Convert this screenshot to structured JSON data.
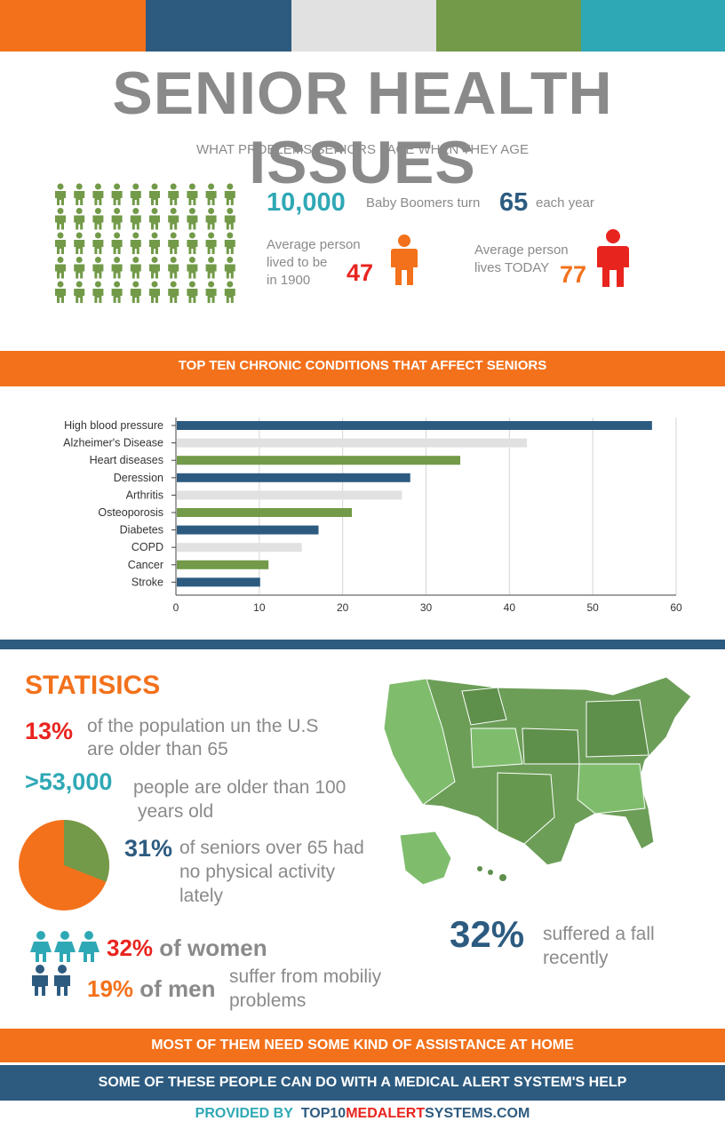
{
  "colors": {
    "orange": "#f3711b",
    "navy": "#2d5b80",
    "light_gray": "#e1e1e1",
    "green": "#729a48",
    "teal": "#2fa8b5",
    "red": "#e8241f",
    "text_gray": "#8a8a8a"
  },
  "header": {
    "title": "SENIOR HEALTH ISSUES",
    "subtitle": "WHAT PROBLEMS SENIORS FACE WHEN THEY AGE"
  },
  "intro": {
    "boomers_number": "10,000",
    "boomers_text": "Baby Boomers turn",
    "age_number": "65",
    "age_text": "each year",
    "lived_1900_text_1": "Average person",
    "lived_1900_text_2": "lived to be",
    "lived_1900_text_3": "in 1900",
    "lived_1900_value": "47",
    "lives_today_text_1": "Average person",
    "lives_today_text_2": "lives TODAY",
    "lives_today_value": "77"
  },
  "section_band_1": "TOP TEN CHRONIC CONDITIONS THAT AFFECT SENIORS",
  "chart_data": {
    "type": "bar",
    "orientation": "horizontal",
    "categories": [
      "High blood pressure",
      "Alzheimer's Disease",
      "Heart diseases",
      "Deression",
      "Arthritis",
      "Osteoporosis",
      "Diabetes",
      "COPD",
      "Cancer",
      "Stroke"
    ],
    "values": [
      57,
      42,
      34,
      28,
      27,
      21,
      17,
      15,
      11,
      10
    ],
    "bar_colors": [
      "#2d5b80",
      "#e1e1e1",
      "#729a48",
      "#2d5b80",
      "#e1e1e1",
      "#729a48",
      "#2d5b80",
      "#e1e1e1",
      "#729a48",
      "#2d5b80"
    ],
    "xlim": [
      0,
      60
    ],
    "xticks": [
      0,
      10,
      20,
      30,
      40,
      50,
      60
    ],
    "grid": true
  },
  "statistics": {
    "heading": "STATISICS",
    "stat1_value": "13%",
    "stat1_text_1": "of the population un the U.S",
    "stat1_text_2": "are older than 65",
    "stat2_value": ">53,000",
    "stat2_text_1": "people are older than 100",
    "stat2_text_2": "years old",
    "stat3_value": "31%",
    "stat3_text_1": "of seniors over 65 had",
    "stat3_text_2": "no physical activity",
    "stat3_text_3": "lately",
    "pie_fraction": 0.31,
    "fall_value": "32%",
    "fall_text_1": "suffered a fall",
    "fall_text_2": "recently",
    "women_value": "32%",
    "women_text": "of women",
    "men_value": "19%",
    "men_text": "of men",
    "mobility_text_1": "suffer from mobiliy",
    "mobility_text_2": "problems"
  },
  "bands": {
    "assistance": "MOST OF THEM NEED SOME KIND OF ASSISTANCE AT HOME",
    "medical_alert": "SOME OF THESE PEOPLE CAN DO WITH A MEDICAL ALERT SYSTEM'S HELP"
  },
  "footer": {
    "provided_by": "PROVIDED BY",
    "site_part1": "TOP10",
    "site_part2": "MEDALERT",
    "site_part3": "SYSTEMS.COM"
  }
}
